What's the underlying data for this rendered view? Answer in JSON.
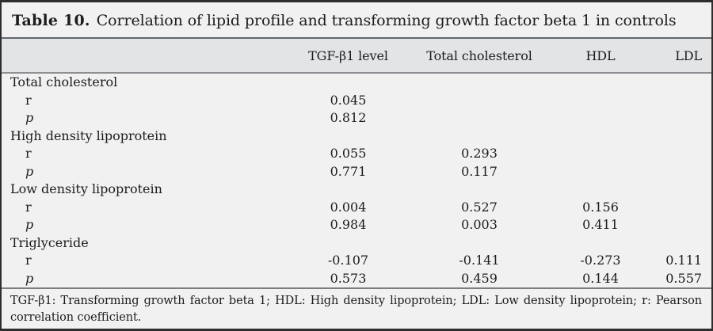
{
  "title": {
    "label": "Table 10.",
    "text": "Correlation of lipid profile and transforming growth factor beta 1 in controls"
  },
  "table": {
    "columns": [
      "",
      "TGF-β1 level",
      "Total cholesterol",
      "HDL",
      "LDL"
    ],
    "groups": [
      {
        "label": "Total cholesterol",
        "rows": [
          {
            "stat": "r",
            "values": [
              "0.045",
              "",
              "",
              ""
            ]
          },
          {
            "stat": "p",
            "values": [
              "0.812",
              "",
              "",
              ""
            ]
          }
        ]
      },
      {
        "label": "High density lipoprotein",
        "rows": [
          {
            "stat": "r",
            "values": [
              "0.055",
              "0.293",
              "",
              ""
            ]
          },
          {
            "stat": "p",
            "values": [
              "0.771",
              "0.117",
              "",
              ""
            ]
          }
        ]
      },
      {
        "label": "Low density lipoprotein",
        "rows": [
          {
            "stat": "r",
            "values": [
              "0.004",
              "0.527",
              "0.156",
              ""
            ]
          },
          {
            "stat": "p",
            "values": [
              "0.984",
              "0.003",
              "0.411",
              ""
            ]
          }
        ]
      },
      {
        "label": "Triglyceride",
        "rows": [
          {
            "stat": "r",
            "values": [
              "-0.107",
              "-0.141",
              "-0.273",
              "0.111"
            ]
          },
          {
            "stat": "p",
            "values": [
              "0.573",
              "0.459",
              "0.144",
              "0.557"
            ]
          }
        ]
      }
    ]
  },
  "footnote": "TGF-β1: Transforming growth factor beta 1; HDL: High density lipoprotein; LDL: Low density lipoprotein; r: Pearson correlation coefficient.",
  "colors": {
    "frame-border": "#2e2e2e",
    "page-bg": "#f1f1f2",
    "header-band-bg": "#e3e4e6",
    "rule-dark": "#63666b",
    "rule-mid": "#8d8f93",
    "rule-foot": "#7b7d81",
    "text": "#1c1c1e"
  }
}
